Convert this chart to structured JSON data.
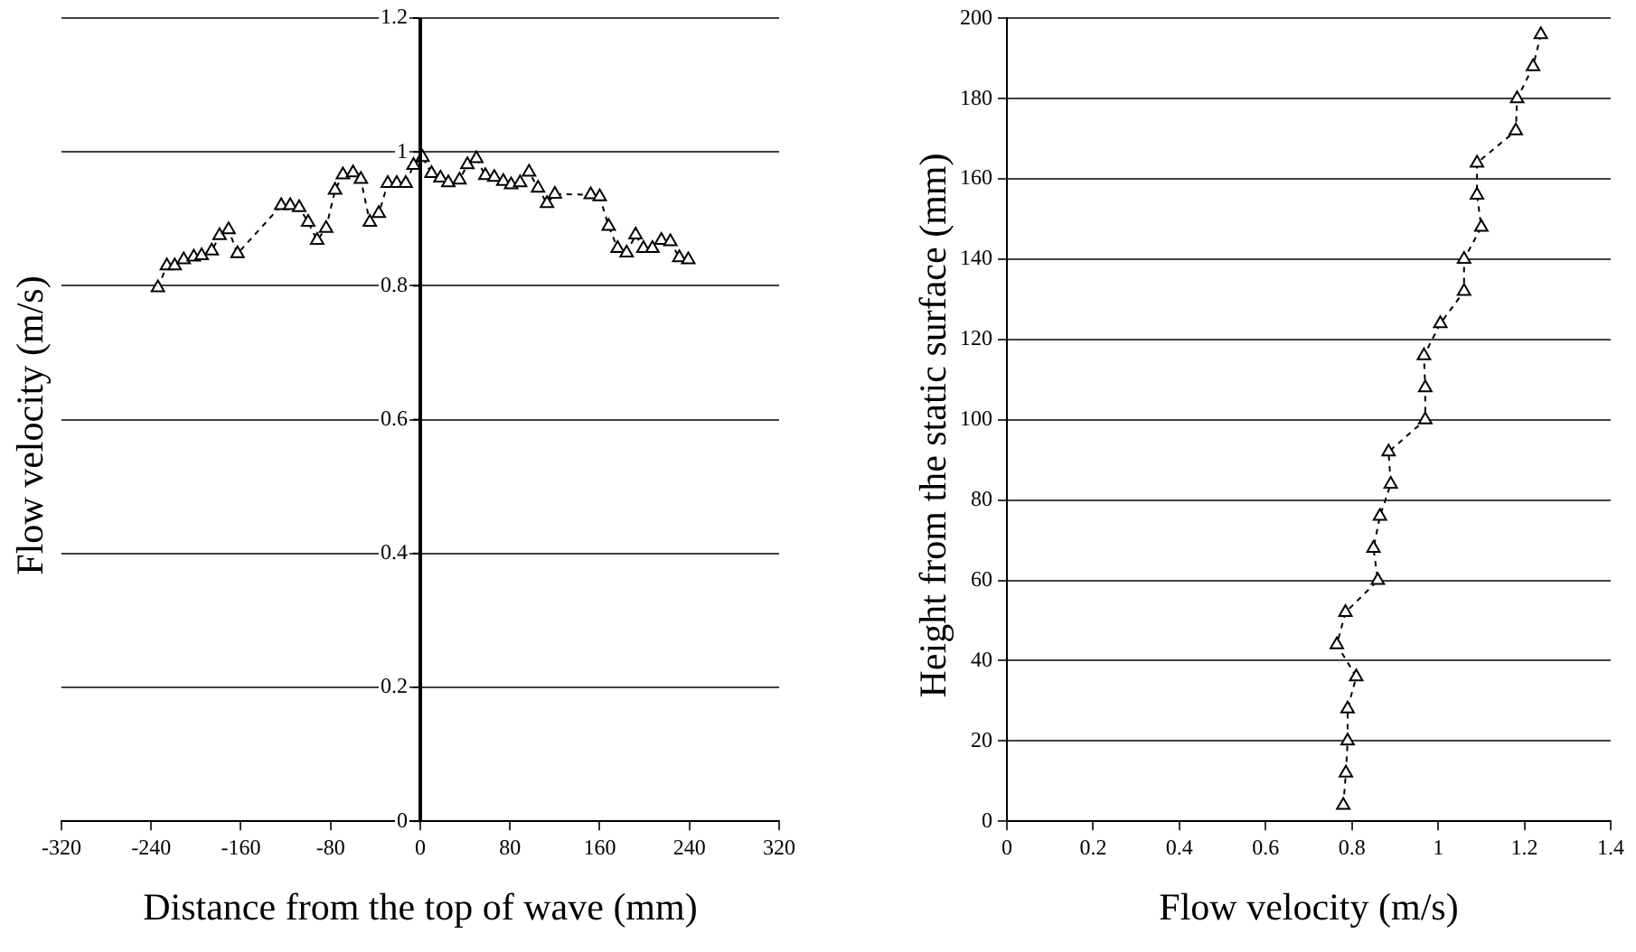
{
  "chart_data": [
    {
      "type": "line",
      "xlabel": "Distance from the top of wave (mm)",
      "ylabel": "Flow velocity (m/s)",
      "x": [
        -234,
        -226,
        -219,
        -211,
        -202,
        -195,
        -186,
        -179,
        -171,
        -163,
        -124,
        -116,
        -108,
        -100,
        -92,
        -84,
        -76,
        -69,
        -60,
        -53,
        -45,
        -37,
        -29,
        -21,
        -13,
        -6,
        2,
        10,
        18,
        25,
        35,
        42,
        50,
        58,
        66,
        74,
        81,
        89,
        97,
        105,
        113,
        120,
        152,
        160,
        168,
        176,
        184,
        192,
        199,
        207,
        215,
        223,
        231,
        239
      ],
      "series": [
        {
          "color": "#000000",
          "values": [
            0.797,
            0.83,
            0.83,
            0.839,
            0.843,
            0.845,
            0.852,
            0.875,
            0.884,
            0.848,
            0.92,
            0.92,
            0.917,
            0.895,
            0.868,
            0.886,
            0.943,
            0.966,
            0.969,
            0.959,
            0.895,
            0.908,
            0.953,
            0.953,
            0.953,
            0.98,
            0.992,
            0.968,
            0.961,
            0.954,
            0.958,
            0.981,
            0.99,
            0.965,
            0.962,
            0.956,
            0.951,
            0.954,
            0.97,
            0.946,
            0.923,
            0.937,
            0.936,
            0.933,
            0.889,
            0.856,
            0.849,
            0.876,
            0.856,
            0.856,
            0.868,
            0.866,
            0.842,
            0.839
          ]
        }
      ],
      "xlim": [
        -320,
        320
      ],
      "xticks": [
        -320,
        -240,
        -160,
        -80,
        0,
        80,
        160,
        240,
        320
      ],
      "ylim": [
        0,
        1.2
      ],
      "yticks": [
        0,
        0.2,
        0.4,
        0.6,
        0.8,
        1,
        1.2
      ],
      "grid": "y",
      "legend": false,
      "marker": "triangle",
      "line_style": "dashed"
    },
    {
      "type": "line",
      "xlabel": "Flow velocity (m/s)",
      "ylabel": "Height from the static surface (mm)",
      "x": [
        0.78,
        0.786,
        0.79,
        0.79,
        0.81,
        0.765,
        0.785,
        0.86,
        0.85,
        0.865,
        0.89,
        0.885,
        0.97,
        0.97,
        0.967,
        1.005,
        1.06,
        1.06,
        1.1,
        1.09,
        1.09,
        1.18,
        1.183,
        1.22,
        1.238
      ],
      "series": [
        {
          "color": "#000000",
          "values": [
            4,
            12,
            20,
            28,
            36,
            44,
            52,
            60,
            68,
            76,
            84,
            92,
            100,
            108,
            116,
            124,
            132,
            140,
            148,
            156,
            164,
            172,
            180,
            188,
            196
          ]
        }
      ],
      "xlim": [
        0,
        1.4
      ],
      "xticks": [
        0,
        0.2,
        0.4,
        0.6,
        0.8,
        1,
        1.2,
        1.4
      ],
      "ylim": [
        0,
        200
      ],
      "yticks": [
        0,
        20,
        40,
        60,
        80,
        100,
        120,
        140,
        160,
        180,
        200
      ],
      "grid": "y",
      "legend": false,
      "marker": "triangle",
      "line_style": "dashed"
    }
  ]
}
